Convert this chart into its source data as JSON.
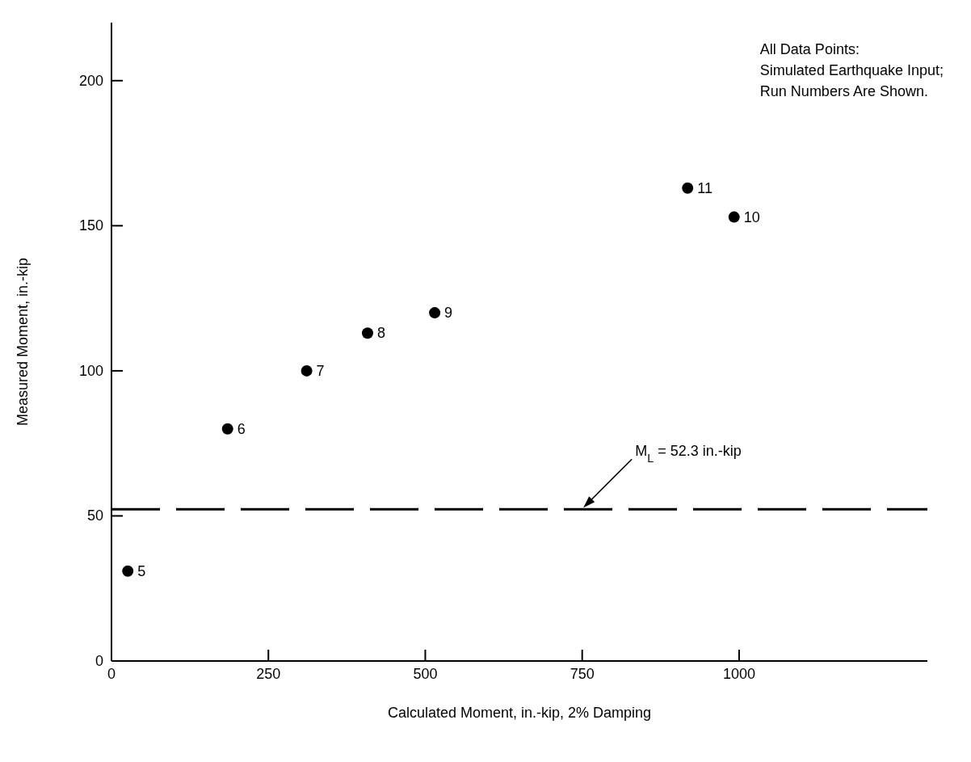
{
  "chart_data": {
    "type": "scatter",
    "xlabel": "Calculated Moment, in.-kip, 2% Damping",
    "ylabel": "Measured Moment, in.-kip",
    "x": [
      26,
      185,
      311,
      408,
      515,
      918,
      992
    ],
    "series": [
      {
        "color": "#000000",
        "values": [
          31,
          80,
          100,
          113,
          120,
          163,
          153
        ]
      }
    ],
    "xlim": [
      0,
      1300
    ],
    "xticks": [
      0,
      250,
      500,
      750,
      1000
    ],
    "ylim": [
      0,
      220
    ],
    "yticks": [
      0,
      50,
      100,
      150,
      200
    ],
    "grid": false,
    "marker": "circle",
    "ref_lines": [
      {
        "axis": "y",
        "value": 52.3,
        "label": "M$_{L}$ = 52.3 in.-kip",
        "color": "#000000",
        "line_style": "dashed"
      }
    ],
    "annotations": [
      "All Data Points:\nSimulated Earthquake Input;\nRun Numbers Are Shown.",
      {
        "text": "5",
        "x": 26,
        "y": 31
      },
      {
        "text": "6",
        "x": 185,
        "y": 80
      },
      {
        "text": "7",
        "x": 311,
        "y": 100
      },
      {
        "text": "8",
        "x": 408,
        "y": 113
      },
      {
        "text": "9",
        "x": 515,
        "y": 120
      },
      {
        "text": "11",
        "x": 918,
        "y": 163
      },
      {
        "text": "10",
        "x": 992,
        "y": 153
      }
    ]
  }
}
